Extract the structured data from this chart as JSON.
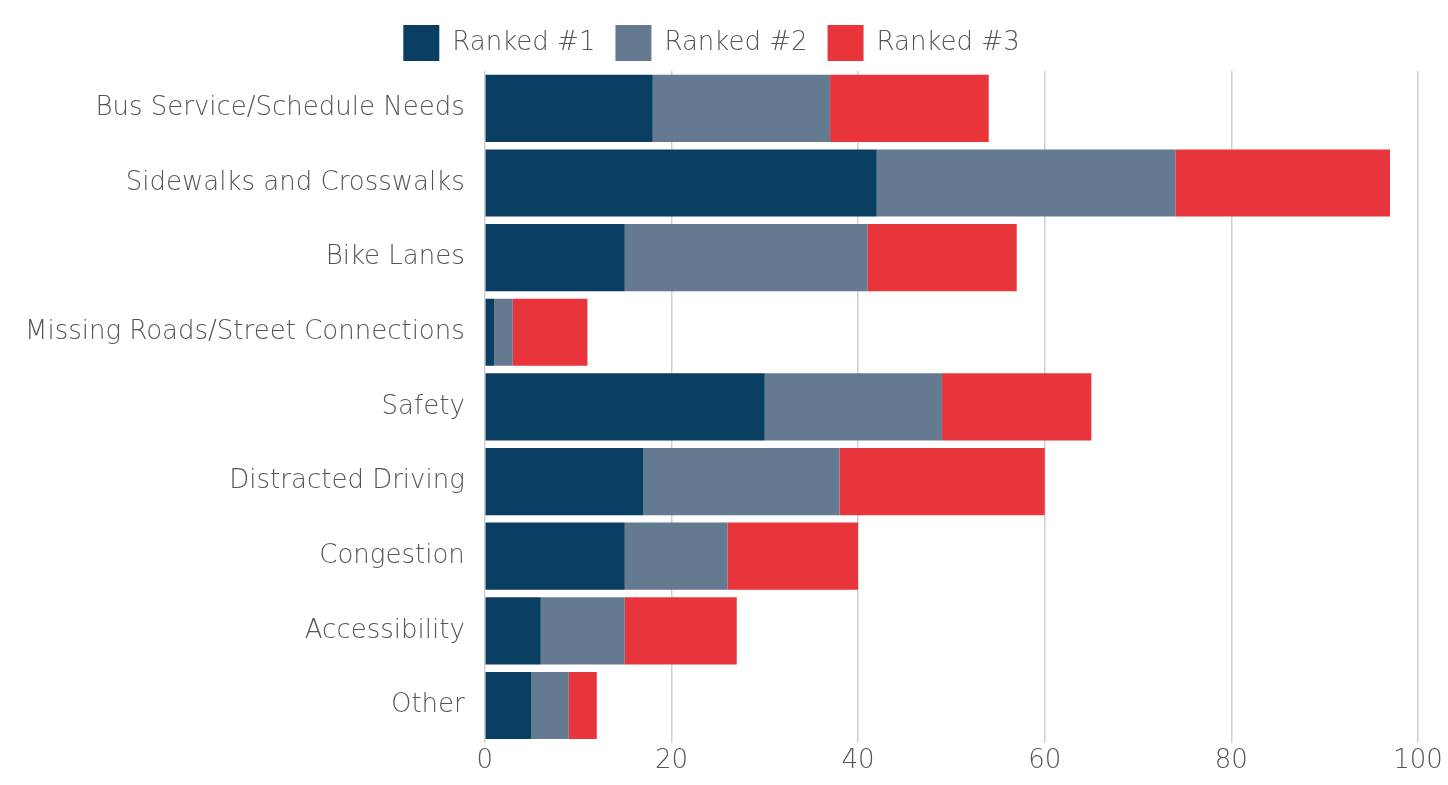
{
  "chart_data": {
    "type": "bar",
    "orientation": "horizontal",
    "stacked": true,
    "categories": [
      "Bus Service/Schedule Needs",
      "Sidewalks and Crosswalks",
      "Bike Lanes",
      "Missing Roads/Street Connections",
      "Safety",
      "Distracted Driving",
      "Congestion",
      "Accessibility",
      "Other"
    ],
    "series": [
      {
        "name": "Ranked #1",
        "color": "#0a3d62",
        "values": [
          18,
          42,
          15,
          1,
          30,
          17,
          15,
          6,
          5
        ]
      },
      {
        "name": "Ranked #2",
        "color": "#647a91",
        "values": [
          19,
          32,
          26,
          2,
          19,
          21,
          11,
          9,
          4
        ]
      },
      {
        "name": "Ranked #3",
        "color": "#e8343b",
        "values": [
          17,
          23,
          16,
          8,
          16,
          22,
          14,
          12,
          3
        ]
      }
    ],
    "xlim": [
      0,
      100
    ],
    "xticks": [
      0,
      20,
      40,
      60,
      80,
      100
    ],
    "grid": "x",
    "legend": "top"
  }
}
